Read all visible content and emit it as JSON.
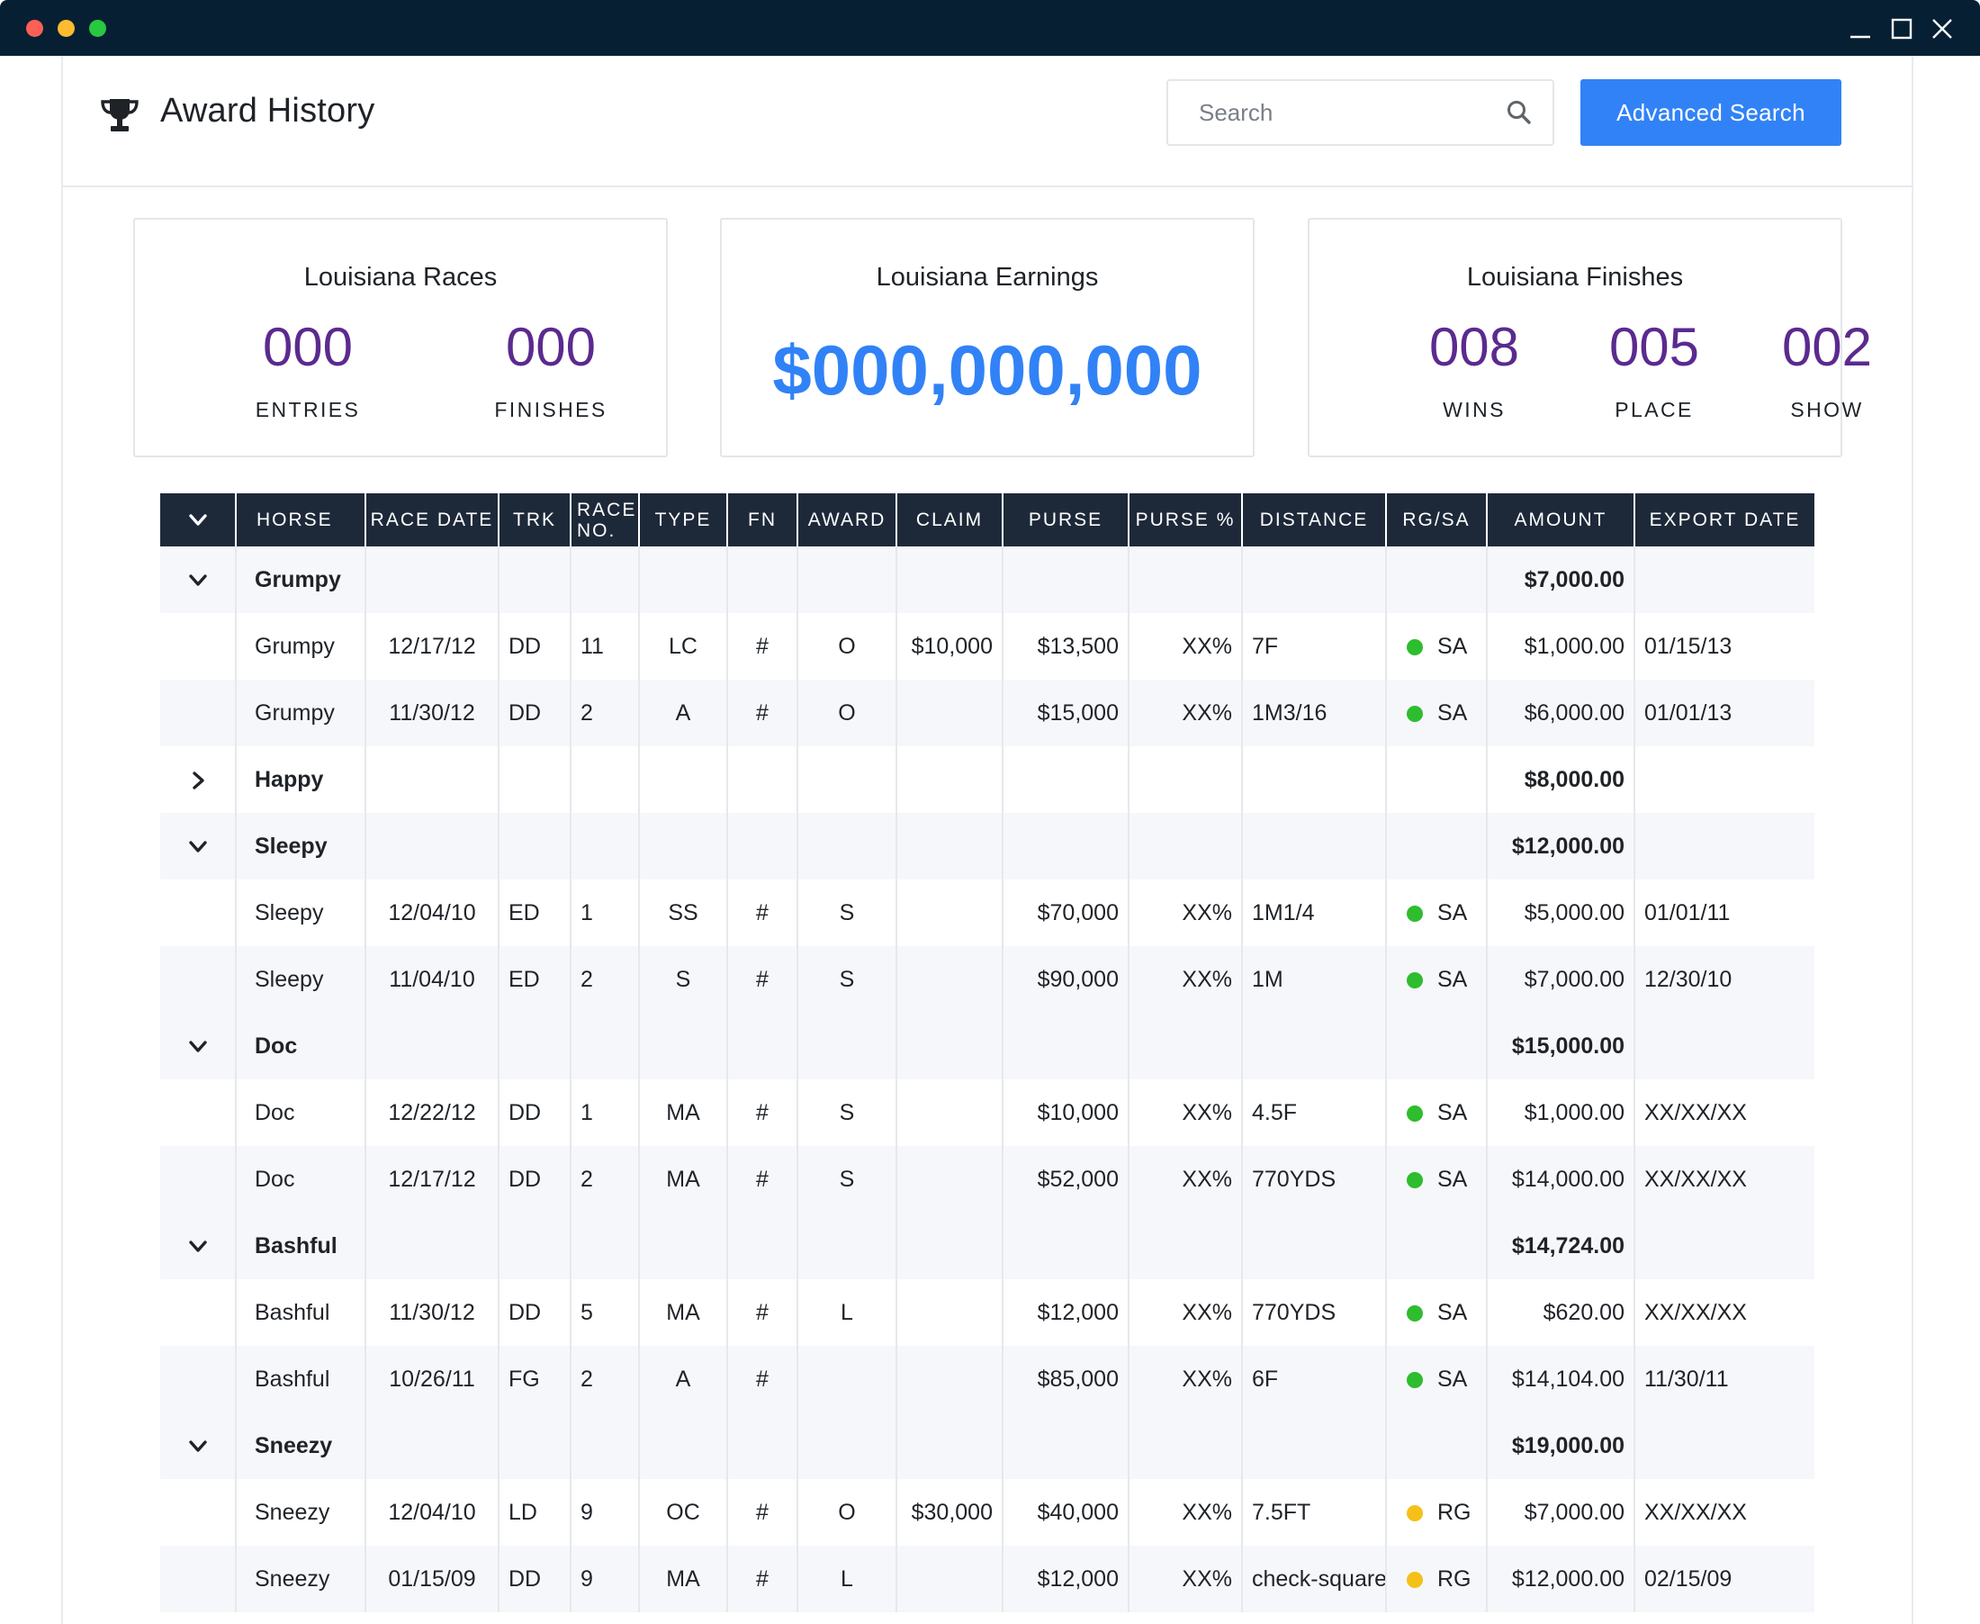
{
  "header": {
    "title": "Award History",
    "search_placeholder": "Search",
    "advanced_search_label": "Advanced Search"
  },
  "cards": {
    "races": {
      "title": "Louisiana Races",
      "metrics": [
        {
          "value": "000",
          "label": "ENTRIES"
        },
        {
          "value": "000",
          "label": "FINISHES"
        }
      ]
    },
    "earnings": {
      "title": "Louisiana Earnings",
      "value": "$000,000,000"
    },
    "finishes": {
      "title": "Louisiana Finishes",
      "metrics": [
        {
          "value": "008",
          "label": "WINS"
        },
        {
          "value": "005",
          "label": "PLACE"
        },
        {
          "value": "002",
          "label": "SHOW"
        }
      ]
    }
  },
  "table": {
    "columns": [
      "HORSE",
      "RACE DATE",
      "TRK",
      "RACE NO.",
      "TYPE",
      "FN",
      "AWARD",
      "CLAIM",
      "PURSE",
      "PURSE %",
      "DISTANCE",
      "RG/SA",
      "AMOUNT",
      "EXPORT DATE"
    ],
    "groups": [
      {
        "horse": "Grumpy",
        "total": "$7,000.00",
        "expanded": true,
        "rows": [
          {
            "horse": "Grumpy",
            "date": "12/17/12",
            "trk": "DD",
            "race_no": "11",
            "type": "LC",
            "fn": "#",
            "award": "O",
            "claim": "$10,000",
            "purse": "$13,500",
            "purse_pct": "XX%",
            "distance": "7F",
            "rgsa": "SA",
            "status": "green",
            "amount": "$1,000.00",
            "export": "01/15/13"
          },
          {
            "horse": "Grumpy",
            "date": "11/30/12",
            "trk": "DD",
            "race_no": "2",
            "type": "A",
            "fn": "#",
            "award": "O",
            "claim": "",
            "purse": "$15,000",
            "purse_pct": "XX%",
            "distance": "1M3/16",
            "rgsa": "SA",
            "status": "green",
            "amount": "$6,000.00",
            "export": "01/01/13"
          }
        ]
      },
      {
        "horse": "Happy",
        "total": "$8,000.00",
        "expanded": false,
        "rows": []
      },
      {
        "horse": "Sleepy",
        "total": "$12,000.00",
        "expanded": true,
        "rows": [
          {
            "horse": "Sleepy",
            "date": "12/04/10",
            "trk": "ED",
            "race_no": "1",
            "type": "SS",
            "fn": "#",
            "award": "S",
            "claim": "",
            "purse": "$70,000",
            "purse_pct": "XX%",
            "distance": "1M1/4",
            "rgsa": "SA",
            "status": "green",
            "amount": "$5,000.00",
            "export": "01/01/11"
          },
          {
            "horse": "Sleepy",
            "date": "11/04/10",
            "trk": "ED",
            "race_no": "2",
            "type": "S",
            "fn": "#",
            "award": "S",
            "claim": "",
            "purse": "$90,000",
            "purse_pct": "XX%",
            "distance": "1M",
            "rgsa": "SA",
            "status": "green",
            "amount": "$7,000.00",
            "export": "12/30/10"
          }
        ]
      },
      {
        "horse": "Doc",
        "total": "$15,000.00",
        "expanded": true,
        "rows": [
          {
            "horse": "Doc",
            "date": "12/22/12",
            "trk": "DD",
            "race_no": "1",
            "type": "MA",
            "fn": "#",
            "award": "S",
            "claim": "",
            "purse": "$10,000",
            "purse_pct": "XX%",
            "distance": "4.5F",
            "rgsa": "SA",
            "status": "green",
            "amount": "$1,000.00",
            "export": "XX/XX/XX"
          },
          {
            "horse": "Doc",
            "date": "12/17/12",
            "trk": "DD",
            "race_no": "2",
            "type": "MA",
            "fn": "#",
            "award": "S",
            "claim": "",
            "purse": "$52,000",
            "purse_pct": "XX%",
            "distance": "770YDS",
            "rgsa": "SA",
            "status": "green",
            "amount": "$14,000.00",
            "export": "XX/XX/XX"
          }
        ]
      },
      {
        "horse": "Bashful",
        "total": "$14,724.00",
        "expanded": true,
        "rows": [
          {
            "horse": "Bashful",
            "date": "11/30/12",
            "trk": "DD",
            "race_no": "5",
            "type": "MA",
            "fn": "#",
            "award": "L",
            "claim": "",
            "purse": "$12,000",
            "purse_pct": "XX%",
            "distance": "770YDS",
            "rgsa": "SA",
            "status": "green",
            "amount": "$620.00",
            "export": "XX/XX/XX"
          },
          {
            "horse": "Bashful",
            "date": "10/26/11",
            "trk": "FG",
            "race_no": "2",
            "type": "A",
            "fn": "#",
            "award": "",
            "claim": "",
            "purse": "$85,000",
            "purse_pct": "XX%",
            "distance": "6F",
            "rgsa": "SA",
            "status": "green",
            "amount": "$14,104.00",
            "export": "11/30/11"
          }
        ]
      },
      {
        "horse": "Sneezy",
        "total": "$19,000.00",
        "expanded": true,
        "rows": [
          {
            "horse": "Sneezy",
            "date": "12/04/10",
            "trk": "LD",
            "race_no": "9",
            "type": "OC",
            "fn": "#",
            "award": "O",
            "claim": "$30,000",
            "purse": "$40,000",
            "purse_pct": "XX%",
            "distance": "7.5FT",
            "rgsa": "RG",
            "status": "yellow",
            "amount": "$7,000.00",
            "export": "XX/XX/XX"
          },
          {
            "horse": "Sneezy",
            "date": "01/15/09",
            "trk": "DD",
            "race_no": "9",
            "type": "MA",
            "fn": "#",
            "award": "L",
            "claim": "",
            "purse": "$12,000",
            "purse_pct": "XX%",
            "distance": "check-square",
            "rgsa": "RG",
            "status": "yellow",
            "amount": "$12,000.00",
            "export": "02/15/09"
          }
        ]
      }
    ]
  },
  "colors": {
    "accent": "#3182f6",
    "metric": "#5b2a8f",
    "header_bg": "#1d2939",
    "titlebar": "#071f33",
    "status_green": "#2ebd2e",
    "status_yellow": "#f5c018"
  },
  "icons": {
    "title": "trophy-icon",
    "search": "search-icon",
    "expanded": "chevron-down-icon",
    "collapsed": "chevron-right-icon"
  }
}
